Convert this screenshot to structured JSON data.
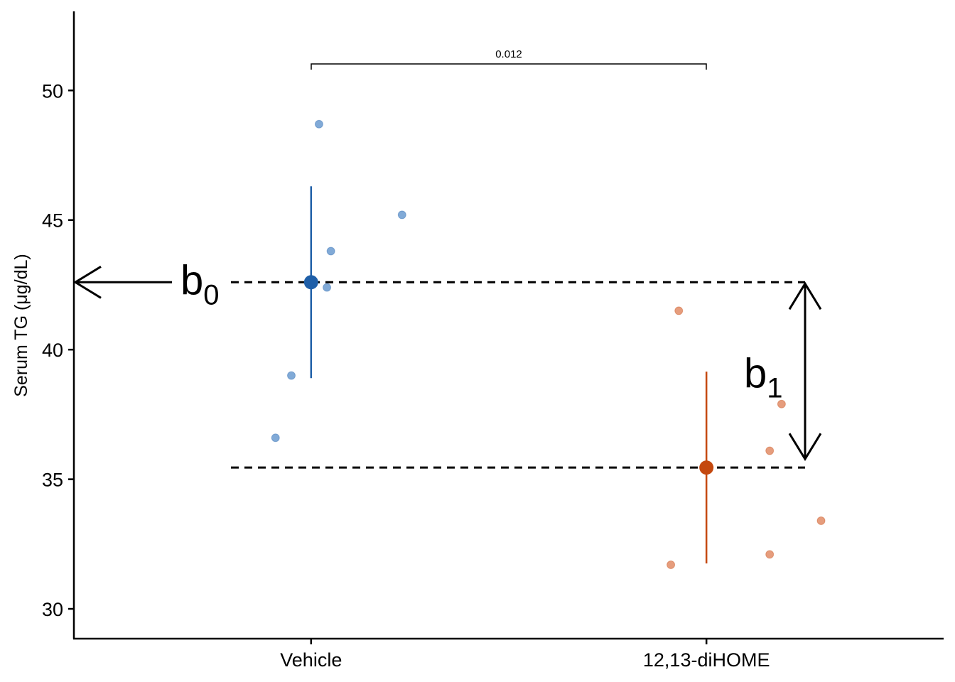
{
  "chart_data": {
    "type": "scatter",
    "ylabel": "Serum TG (μg/dL)",
    "xlabel": "",
    "ylim": [
      28.85,
      53.05
    ],
    "yticks": [
      30,
      35,
      40,
      45,
      50
    ],
    "categories": [
      "Vehicle",
      "12,13-diHOME"
    ],
    "grid": false,
    "series": [
      {
        "category": "Vehicle",
        "color": "#1f5fa8",
        "point_color": "#6b9bd0",
        "points": [
          {
            "offset": 0.02,
            "y": 48.7
          },
          {
            "offset": 0.23,
            "y": 45.2
          },
          {
            "offset": 0.05,
            "y": 43.8
          },
          {
            "offset": 0.04,
            "y": 42.4
          },
          {
            "offset": -0.05,
            "y": 39.0
          },
          {
            "offset": -0.09,
            "y": 36.6
          }
        ],
        "mean": 42.6,
        "ci": [
          38.9,
          46.3
        ]
      },
      {
        "category": "12,13-diHOME",
        "color": "#c4480f",
        "point_color": "#e28c66",
        "points": [
          {
            "offset": -0.07,
            "y": 41.5
          },
          {
            "offset": 0.19,
            "y": 37.9
          },
          {
            "offset": 0.16,
            "y": 36.1
          },
          {
            "offset": 0.29,
            "y": 33.4
          },
          {
            "offset": 0.16,
            "y": 32.1
          },
          {
            "offset": -0.09,
            "y": 31.7
          }
        ],
        "mean": 35.45,
        "ci": [
          31.75,
          39.15
        ]
      }
    ],
    "annotations": {
      "pvalue": "0.012",
      "b0": {
        "base": "b",
        "sub": "0"
      },
      "b1": {
        "base": "b",
        "sub": "1"
      }
    }
  }
}
